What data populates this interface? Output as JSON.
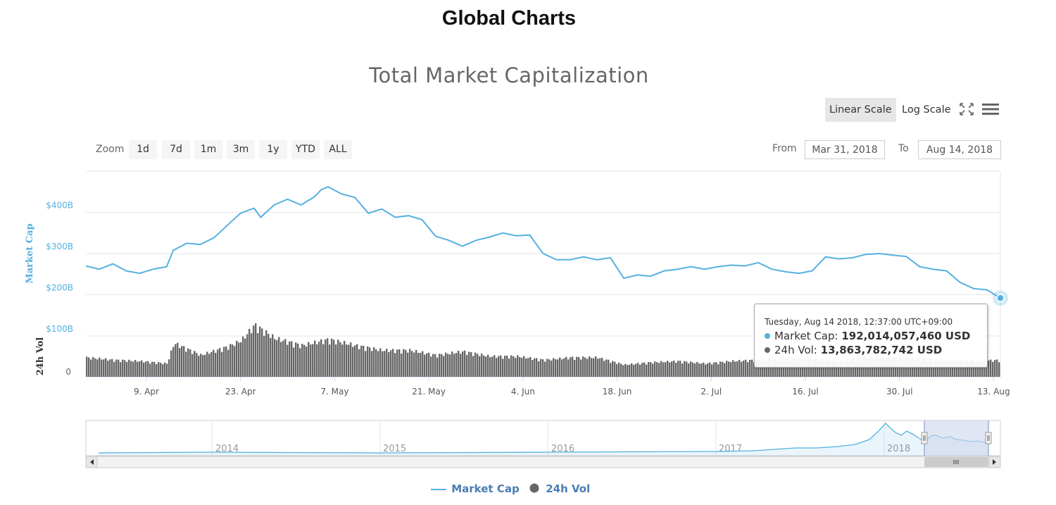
{
  "page": {
    "heading": "Global Charts"
  },
  "toolbar": {
    "linear_label": "Linear Scale",
    "log_label": "Log Scale",
    "active_scale": "linear",
    "fullscreen_icon": "fullscreen-icon",
    "menu_icon": "menu-icon"
  },
  "zoom": {
    "label": "Zoom",
    "buttons": [
      "1d",
      "7d",
      "1m",
      "3m",
      "1y",
      "YTD",
      "ALL"
    ]
  },
  "range": {
    "from_label": "From",
    "from_value": "Mar 31, 2018",
    "to_label": "To",
    "to_value": "Aug 14, 2018"
  },
  "tooltip": {
    "date": "Tuesday, Aug 14 2018, 12:37:00 UTC+09:00",
    "market_cap_label": "Market Cap:",
    "market_cap_value": "192,014,057,460 USD",
    "volume_label": "24h Vol:",
    "volume_value": "13,863,782,742 USD"
  },
  "legend": {
    "market_cap": "Market Cap",
    "volume": "24h Vol"
  },
  "colors": {
    "market_cap": "#55b0e0",
    "volume": "#666666",
    "axis_label": "#55b0e0",
    "navigator_mask": "#ccd6eb"
  },
  "chart_data": {
    "type": "line",
    "title": "Total Market Capitalization",
    "ylabel": "Market Cap",
    "ylabel_secondary": "24h Vol",
    "ylim": [
      100,
      500
    ],
    "y_unit": "billion USD",
    "y_ticks": [
      "$100B",
      "$200B",
      "$300B",
      "$400B"
    ],
    "volume_ticks": [
      "0"
    ],
    "x_ticks": [
      "9. Apr",
      "23. Apr",
      "7. May",
      "21. May",
      "4. Jun",
      "18. Jun",
      "2. Jul",
      "16. Jul",
      "30. Jul",
      "13. Aug"
    ],
    "xlim": [
      "2018-03-31",
      "2018-08-14"
    ],
    "grid": true,
    "legend_position": "bottom-center",
    "series": [
      {
        "name": "Market Cap",
        "x": [
          "2018-03-31",
          "2018-04-02",
          "2018-04-04",
          "2018-04-06",
          "2018-04-08",
          "2018-04-10",
          "2018-04-12",
          "2018-04-13",
          "2018-04-15",
          "2018-04-17",
          "2018-04-19",
          "2018-04-21",
          "2018-04-23",
          "2018-04-25",
          "2018-04-26",
          "2018-04-28",
          "2018-04-30",
          "2018-05-02",
          "2018-05-04",
          "2018-05-05",
          "2018-05-06",
          "2018-05-08",
          "2018-05-10",
          "2018-05-12",
          "2018-05-14",
          "2018-05-16",
          "2018-05-18",
          "2018-05-20",
          "2018-05-22",
          "2018-05-24",
          "2018-05-26",
          "2018-05-28",
          "2018-05-30",
          "2018-06-01",
          "2018-06-03",
          "2018-06-05",
          "2018-06-07",
          "2018-06-09",
          "2018-06-11",
          "2018-06-13",
          "2018-06-15",
          "2018-06-17",
          "2018-06-19",
          "2018-06-21",
          "2018-06-23",
          "2018-06-25",
          "2018-06-27",
          "2018-06-29",
          "2018-07-01",
          "2018-07-03",
          "2018-07-05",
          "2018-07-07",
          "2018-07-09",
          "2018-07-11",
          "2018-07-13",
          "2018-07-15",
          "2018-07-17",
          "2018-07-19",
          "2018-07-21",
          "2018-07-23",
          "2018-07-25",
          "2018-07-27",
          "2018-07-29",
          "2018-07-31",
          "2018-08-02",
          "2018-08-04",
          "2018-08-06",
          "2018-08-08",
          "2018-08-10",
          "2018-08-12",
          "2018-08-14"
        ],
        "values": [
          270,
          262,
          275,
          258,
          252,
          262,
          268,
          308,
          325,
          322,
          338,
          368,
          398,
          410,
          388,
          418,
          432,
          418,
          438,
          455,
          462,
          445,
          436,
          398,
          408,
          388,
          392,
          382,
          342,
          332,
          318,
          332,
          340,
          350,
          343,
          345,
          300,
          285,
          285,
          292,
          285,
          290,
          240,
          248,
          245,
          258,
          262,
          268,
          262,
          268,
          272,
          270,
          278,
          262,
          256,
          252,
          258,
          292,
          287,
          290,
          298,
          300,
          296,
          293,
          268,
          262,
          258,
          230,
          215,
          212,
          192
        ]
      },
      {
        "name": "24h Vol",
        "x": [
          "2018-03-31",
          "2018-04-04",
          "2018-04-08",
          "2018-04-12",
          "2018-04-13",
          "2018-04-17",
          "2018-04-21",
          "2018-04-23",
          "2018-04-25",
          "2018-04-28",
          "2018-05-02",
          "2018-05-06",
          "2018-05-10",
          "2018-05-14",
          "2018-05-18",
          "2018-05-22",
          "2018-05-26",
          "2018-05-30",
          "2018-06-03",
          "2018-06-07",
          "2018-06-11",
          "2018-06-15",
          "2018-06-19",
          "2018-06-23",
          "2018-06-27",
          "2018-07-01",
          "2018-07-05",
          "2018-07-09",
          "2018-07-13",
          "2018-07-17",
          "2018-07-21",
          "2018-07-25",
          "2018-07-29",
          "2018-08-02",
          "2018-08-06",
          "2018-08-10",
          "2018-08-14"
        ],
        "values": [
          16,
          14,
          13,
          11,
          28,
          18,
          25,
          30,
          43,
          32,
          26,
          31,
          26,
          22,
          22,
          18,
          21,
          17,
          17,
          14,
          16,
          16,
          10,
          12,
          13,
          11,
          13,
          14,
          15,
          15,
          13,
          16,
          16,
          15,
          14,
          13,
          14
        ]
      }
    ]
  }
}
